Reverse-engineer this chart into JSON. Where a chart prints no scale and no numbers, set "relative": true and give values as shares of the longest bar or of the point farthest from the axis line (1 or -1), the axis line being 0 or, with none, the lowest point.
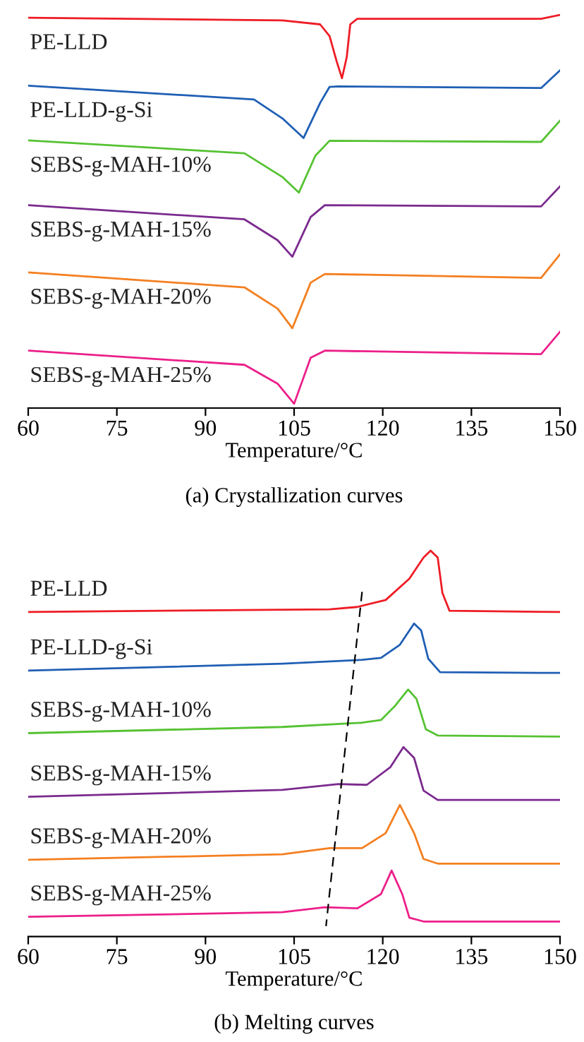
{
  "chart_data": [
    {
      "type": "line",
      "title": "(a) Crystallization curves",
      "xlabel": "Temperature/°C",
      "relative": true,
      "xlim": [
        60,
        150
      ],
      "xticks": [
        60,
        75,
        90,
        105,
        120,
        135,
        150
      ],
      "tick_labels": "x",
      "marker": "none",
      "line_style": "solid",
      "grid": false,
      "legend": false,
      "series": [
        {
          "name": "PE-LLD",
          "color": "#ee1c25",
          "x": [
            60,
            103,
            109.4,
            111,
            112.2,
            113.1,
            113.9,
            114.5,
            115.7,
            146.8,
            150
          ],
          "values": [
            0.993,
            0.986,
            0.976,
            0.946,
            0.882,
            0.839,
            0.892,
            0.976,
            0.99,
            0.99,
            1.0
          ]
        },
        {
          "name": "PE-LLD-g-Si",
          "color": "#1f5fb4",
          "x": [
            60,
            98.2,
            103,
            106.6,
            109.4,
            111,
            112.5,
            146.8,
            150
          ],
          "values": [
            0.82,
            0.785,
            0.737,
            0.687,
            0.776,
            0.817,
            0.818,
            0.814,
            0.859
          ]
        },
        {
          "name": "SEBS-g-MAH-10%",
          "color": "#55c232",
          "x": [
            60,
            96.6,
            103,
            105.8,
            108.6,
            111,
            146.8,
            150
          ],
          "values": [
            0.681,
            0.648,
            0.588,
            0.548,
            0.642,
            0.68,
            0.677,
            0.731
          ]
        },
        {
          "name": "SEBS-g-MAH-15%",
          "color": "#7b2a8e",
          "x": [
            60,
            96.6,
            102.2,
            104.7,
            107.8,
            110.2,
            146.8,
            150
          ],
          "values": [
            0.516,
            0.48,
            0.427,
            0.385,
            0.486,
            0.516,
            0.513,
            0.564
          ]
        },
        {
          "name": "SEBS-g-MAH-20%",
          "color": "#f47f20",
          "x": [
            60,
            96.6,
            102.2,
            104.7,
            107.8,
            110.2,
            146.8,
            150
          ],
          "values": [
            0.345,
            0.307,
            0.253,
            0.203,
            0.319,
            0.341,
            0.331,
            0.391
          ]
        },
        {
          "name": "SEBS-g-MAH-25%",
          "color": "#ec1f8a",
          "x": [
            60,
            96.6,
            102.2,
            105,
            107.8,
            110.2,
            146.8,
            150
          ],
          "values": [
            0.146,
            0.11,
            0.062,
            0.011,
            0.128,
            0.146,
            0.137,
            0.194
          ]
        }
      ]
    },
    {
      "type": "line",
      "title": "(b) Melting curves",
      "xlabel": "Temperature/°C",
      "relative": true,
      "xlim": [
        60,
        150
      ],
      "xticks": [
        60,
        75,
        90,
        105,
        120,
        135,
        150
      ],
      "tick_labels": "x",
      "marker": "none",
      "line_style": "solid",
      "grid": false,
      "legend": false,
      "series": [
        {
          "name": "PE-LLD",
          "color": "#ee1c25",
          "x": [
            60,
            111,
            115.7,
            120.5,
            124.5,
            126.9,
            128.1,
            129.3,
            130.1,
            131.3,
            150
          ],
          "values": [
            0.841,
            0.848,
            0.854,
            0.872,
            0.927,
            0.982,
            1.0,
            0.982,
            0.89,
            0.844,
            0.841
          ]
        },
        {
          "name": "PE-LLD-g-Si",
          "color": "#1f5fb4",
          "x": [
            60,
            103,
            116.5,
            119.7,
            122.9,
            125.3,
            126.5,
            127.7,
            129.7,
            150
          ],
          "values": [
            0.689,
            0.707,
            0.717,
            0.722,
            0.756,
            0.811,
            0.793,
            0.72,
            0.685,
            0.683
          ]
        },
        {
          "name": "SEBS-g-MAH-10%",
          "color": "#55c232",
          "x": [
            60,
            103,
            116.5,
            119.7,
            122.1,
            124.3,
            125.7,
            127.3,
            129.3,
            150
          ],
          "values": [
            0.527,
            0.543,
            0.554,
            0.561,
            0.598,
            0.64,
            0.616,
            0.537,
            0.521,
            0.518
          ]
        },
        {
          "name": "SEBS-g-MAH-15%",
          "color": "#7b2a8e",
          "x": [
            60,
            103,
            112.5,
            117.3,
            121.3,
            123.5,
            125.3,
            126.9,
            129.3,
            150
          ],
          "values": [
            0.362,
            0.38,
            0.395,
            0.393,
            0.439,
            0.491,
            0.463,
            0.378,
            0.354,
            0.354
          ]
        },
        {
          "name": "SEBS-g-MAH-20%",
          "color": "#f47f20",
          "x": [
            60,
            103,
            111,
            116.5,
            120.5,
            122.9,
            125.3,
            126.9,
            129.3,
            150
          ],
          "values": [
            0.199,
            0.213,
            0.229,
            0.229,
            0.268,
            0.341,
            0.268,
            0.201,
            0.189,
            0.189
          ]
        },
        {
          "name": "SEBS-g-MAH-25%",
          "color": "#ec1f8a",
          "x": [
            60,
            103,
            110.2,
            115.7,
            119.7,
            121.5,
            123.3,
            124.5,
            126.9,
            150
          ],
          "values": [
            0.051,
            0.063,
            0.076,
            0.073,
            0.11,
            0.171,
            0.11,
            0.049,
            0.039,
            0.039
          ]
        },
        {
          "color": "#000000",
          "line_style": "dashed",
          "x": [
            116.5,
            110.4
          ],
          "values": [
            0.893,
            0.027
          ]
        }
      ]
    }
  ]
}
